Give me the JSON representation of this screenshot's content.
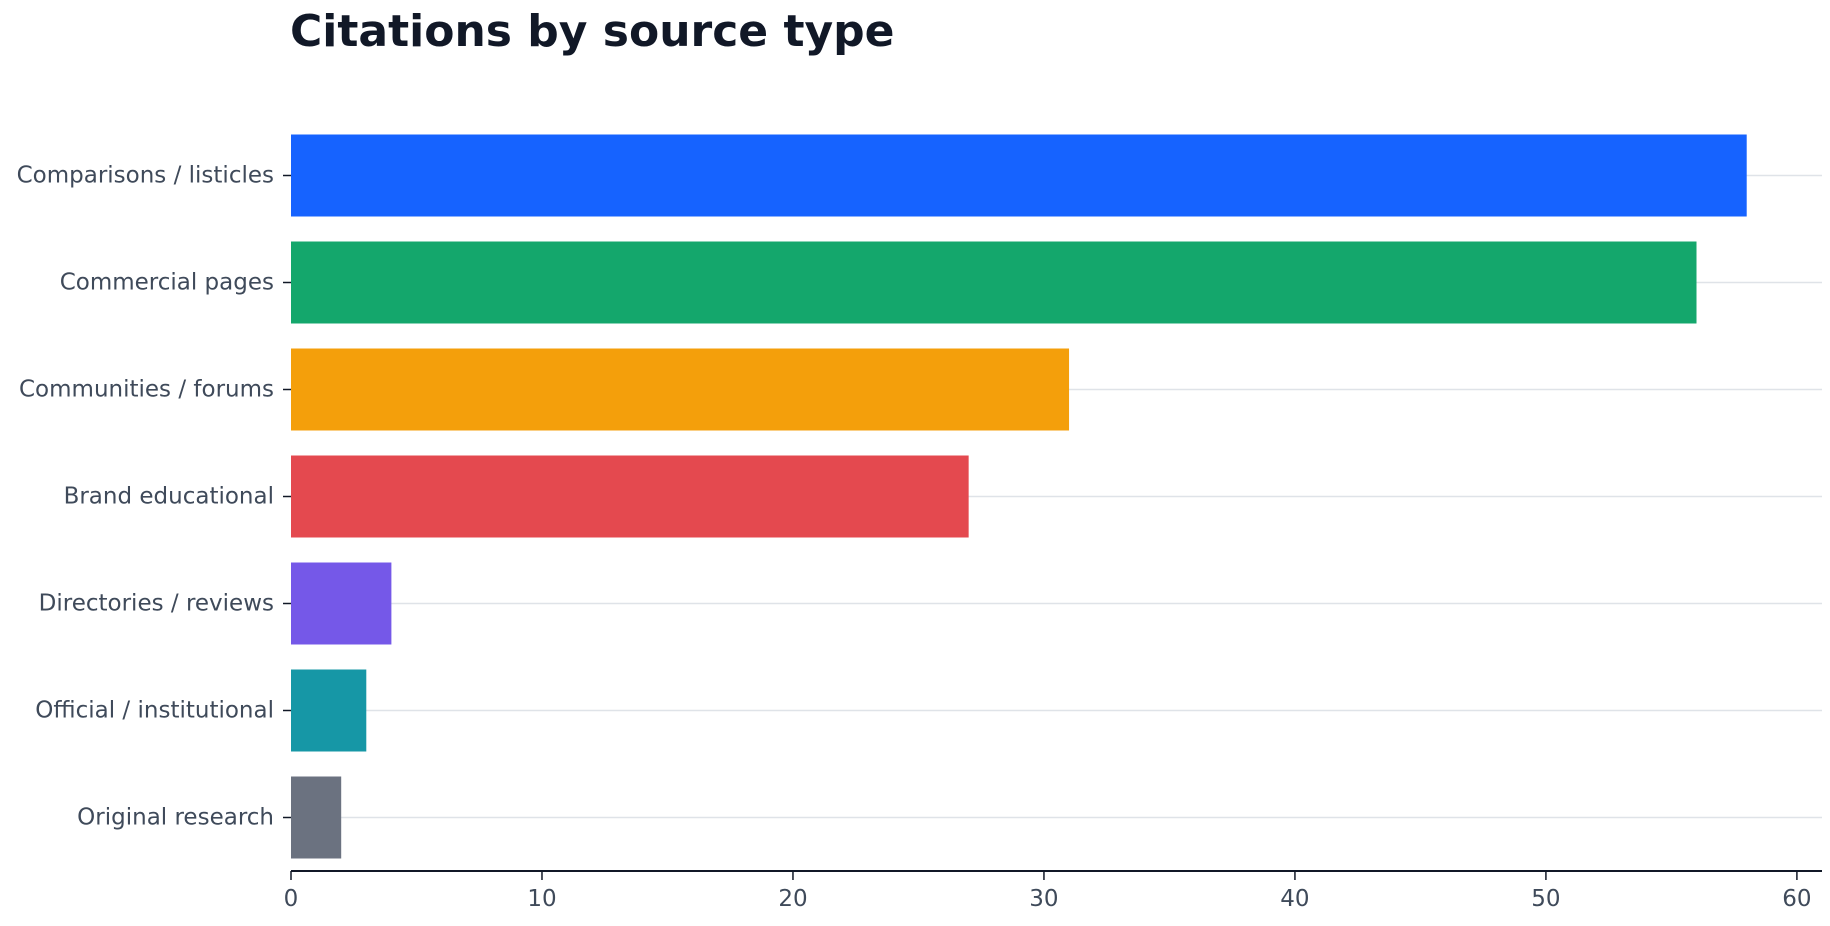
{
  "chart_data": {
    "type": "bar",
    "orientation": "horizontal",
    "title": "Citations by source type",
    "xlabel": "",
    "ylabel": "",
    "categories": [
      "Comparisons / listicles",
      "Commercial pages",
      "Communities / forums",
      "Brand educational",
      "Directories / reviews",
      "Official / institutional",
      "Original research"
    ],
    "values": [
      58,
      56,
      31,
      27,
      4,
      3,
      2
    ],
    "colors": [
      "#1663ff",
      "#14a76c",
      "#f49f0b",
      "#e4494f",
      "#7558e8",
      "#1697a6",
      "#6b7280"
    ],
    "xlim": [
      0,
      61
    ],
    "xticks": [
      0,
      10,
      20,
      30,
      40,
      50,
      60
    ],
    "grid": "vertical-category-lines",
    "legend": "none"
  }
}
